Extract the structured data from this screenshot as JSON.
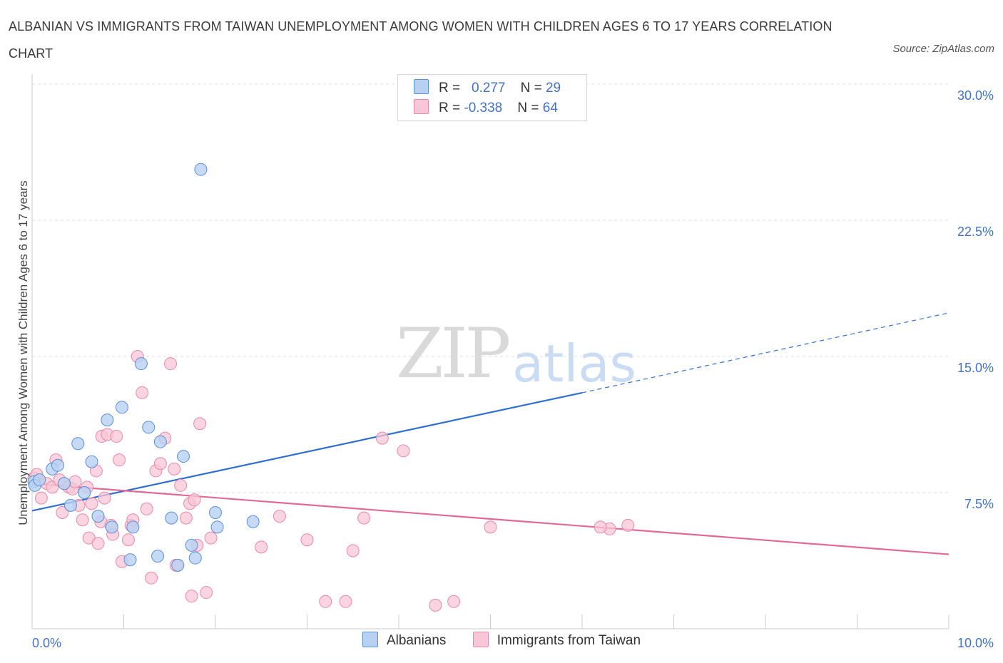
{
  "title": "ALBANIAN VS IMMIGRANTS FROM TAIWAN UNEMPLOYMENT AMONG WOMEN WITH CHILDREN AGES 6 TO 17 YEARS CORRELATION CHART",
  "source": "Source: ZipAtlas.com",
  "watermark": {
    "zip": "ZIP",
    "atlas": "atlas"
  },
  "legend": {
    "rows": [
      {
        "r_label": "R = ",
        "r_value": "0.277",
        "n_label": "N = ",
        "n_value": "29"
      },
      {
        "r_label": "R = ",
        "r_value": "-0.338",
        "n_label": "N = ",
        "n_value": "64"
      }
    ]
  },
  "colors": {
    "albanians_fill": "#b8d1f2",
    "albanians_stroke": "#5b8fd6",
    "albanians_line": "#2f6fcf",
    "taiwan_fill": "#f8c6d6",
    "taiwan_stroke": "#e88aa8",
    "taiwan_line": "#e06a95",
    "grid": "#dddddd",
    "axis": "#cccccc"
  },
  "chart_data": {
    "type": "scatter",
    "title": "ALBANIAN VS IMMIGRANTS FROM TAIWAN UNEMPLOYMENT AMONG WOMEN WITH CHILDREN AGES 6 TO 17 YEARS CORRELATION CHART",
    "xlabel": "",
    "ylabel": "Unemployment Among Women with Children Ages 6 to 17 years",
    "xlim": [
      0,
      10
    ],
    "ylim": [
      0,
      30
    ],
    "x_tick_labels": [
      "0.0%",
      "10.0%"
    ],
    "y_ticks": [
      7.5,
      15.0,
      22.5,
      30.0
    ],
    "y_tick_labels": [
      "7.5%",
      "15.0%",
      "22.5%",
      "30.0%"
    ],
    "grid": true,
    "legend_position": "top-center",
    "series": [
      {
        "name": "Albanians",
        "r": 0.277,
        "n": 29,
        "trend": {
          "x0": 0,
          "y0": 6.5,
          "x1": 6.0,
          "y1": 13.0,
          "dash_x1": 10,
          "dash_y1": 17.4
        },
        "points": [
          [
            0.02,
            8.1
          ],
          [
            0.03,
            7.9
          ],
          [
            0.08,
            8.2
          ],
          [
            0.22,
            8.8
          ],
          [
            0.28,
            9.0
          ],
          [
            0.35,
            8.0
          ],
          [
            0.42,
            6.8
          ],
          [
            0.5,
            10.2
          ],
          [
            0.57,
            7.5
          ],
          [
            0.65,
            9.2
          ],
          [
            0.72,
            6.2
          ],
          [
            0.82,
            11.5
          ],
          [
            0.87,
            5.6
          ],
          [
            0.98,
            12.2
          ],
          [
            1.07,
            3.8
          ],
          [
            1.1,
            5.6
          ],
          [
            1.19,
            14.6
          ],
          [
            1.27,
            11.1
          ],
          [
            1.37,
            4.0
          ],
          [
            1.4,
            10.3
          ],
          [
            1.52,
            6.1
          ],
          [
            1.59,
            3.5
          ],
          [
            1.65,
            9.5
          ],
          [
            1.74,
            4.6
          ],
          [
            1.78,
            3.9
          ],
          [
            1.84,
            25.3
          ],
          [
            2.0,
            6.4
          ],
          [
            2.02,
            5.6
          ],
          [
            2.41,
            5.9
          ]
        ]
      },
      {
        "name": "Immigrants from Taiwan",
        "r": -0.338,
        "n": 64,
        "trend": {
          "x0": 0,
          "y0": 8.0,
          "x1": 10,
          "y1": 4.1
        },
        "points": [
          [
            0.02,
            8.3
          ],
          [
            0.1,
            7.2
          ],
          [
            0.16,
            8.0
          ],
          [
            0.22,
            7.8
          ],
          [
            0.26,
            9.3
          ],
          [
            0.3,
            8.2
          ],
          [
            0.33,
            6.4
          ],
          [
            0.4,
            7.8
          ],
          [
            0.44,
            7.7
          ],
          [
            0.47,
            8.1
          ],
          [
            0.51,
            6.8
          ],
          [
            0.55,
            6.0
          ],
          [
            0.6,
            7.8
          ],
          [
            0.62,
            5.0
          ],
          [
            0.65,
            6.9
          ],
          [
            0.7,
            8.7
          ],
          [
            0.72,
            4.7
          ],
          [
            0.75,
            5.9
          ],
          [
            0.76,
            10.6
          ],
          [
            0.79,
            7.2
          ],
          [
            0.82,
            10.7
          ],
          [
            0.86,
            5.7
          ],
          [
            0.88,
            5.2
          ],
          [
            0.92,
            10.6
          ],
          [
            0.95,
            9.3
          ],
          [
            0.98,
            3.7
          ],
          [
            1.05,
            4.9
          ],
          [
            1.08,
            5.7
          ],
          [
            1.1,
            6.0
          ],
          [
            1.15,
            15.0
          ],
          [
            1.2,
            13.0
          ],
          [
            1.25,
            6.6
          ],
          [
            1.3,
            2.8
          ],
          [
            1.35,
            8.7
          ],
          [
            1.4,
            9.1
          ],
          [
            1.45,
            10.5
          ],
          [
            1.51,
            14.6
          ],
          [
            1.55,
            8.8
          ],
          [
            1.57,
            3.5
          ],
          [
            1.62,
            7.9
          ],
          [
            1.68,
            6.1
          ],
          [
            1.72,
            6.9
          ],
          [
            1.74,
            1.8
          ],
          [
            1.77,
            7.1
          ],
          [
            1.8,
            4.6
          ],
          [
            1.83,
            11.3
          ],
          [
            1.9,
            2.0
          ],
          [
            1.95,
            5.0
          ],
          [
            2.5,
            4.5
          ],
          [
            2.7,
            6.2
          ],
          [
            3.0,
            4.9
          ],
          [
            3.2,
            1.5
          ],
          [
            3.42,
            1.5
          ],
          [
            3.5,
            4.3
          ],
          [
            3.62,
            6.1
          ],
          [
            3.82,
            10.5
          ],
          [
            4.05,
            9.8
          ],
          [
            4.4,
            1.3
          ],
          [
            4.6,
            1.5
          ],
          [
            5.0,
            5.6
          ],
          [
            6.3,
            5.5
          ],
          [
            6.5,
            5.7
          ],
          [
            6.2,
            5.6
          ],
          [
            0.05,
            8.5
          ]
        ]
      }
    ]
  },
  "bottom_legend": [
    {
      "label": "Albanians"
    },
    {
      "label": "Immigrants from Taiwan"
    }
  ]
}
